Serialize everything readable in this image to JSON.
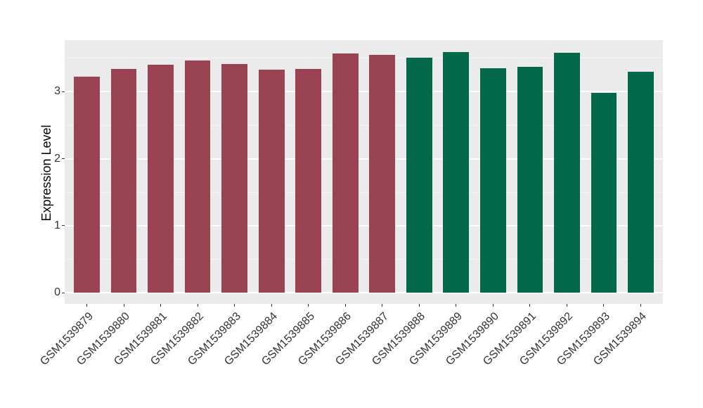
{
  "chart_data": {
    "type": "bar",
    "title": "",
    "xlabel": "",
    "ylabel": "Expression Level",
    "categories": [
      "GSM1539879",
      "GSM1539880",
      "GSM1539881",
      "GSM1539882",
      "GSM1539883",
      "GSM1539884",
      "GSM1539885",
      "GSM1539886",
      "GSM1539887",
      "GSM1539888",
      "GSM1539889",
      "GSM1539890",
      "GSM1539891",
      "GSM1539892",
      "GSM1539893",
      "GSM1539894"
    ],
    "values": [
      3.22,
      3.34,
      3.4,
      3.47,
      3.41,
      3.33,
      3.34,
      3.57,
      3.55,
      3.51,
      3.59,
      3.35,
      3.37,
      3.58,
      2.98,
      3.3
    ],
    "bar_groups": [
      0,
      0,
      0,
      0,
      0,
      0,
      0,
      0,
      0,
      1,
      1,
      1,
      1,
      1,
      1,
      1
    ],
    "group_colors": [
      "#9A4352",
      "#03694A"
    ],
    "yticks": [
      0,
      1,
      2,
      3
    ],
    "ytick_labels": [
      "0",
      "1",
      "2",
      "3"
    ],
    "minor_yticks": [
      0.5,
      1.5,
      2.5,
      3.5
    ],
    "ylim": [
      -0.165,
      3.77
    ],
    "bar_width_fraction": 0.7,
    "slot_expand": 0.6,
    "grid": true,
    "legend_position": "none",
    "colors": {
      "panel_background": "#EBEBEB",
      "grid_major": "#FFFFFF",
      "grid_minor": "#F4F4F4",
      "axis_text": "#333333",
      "tick_mark": "#333333",
      "axis_title": "#000000",
      "figure_background": "#FFFFFF"
    }
  }
}
